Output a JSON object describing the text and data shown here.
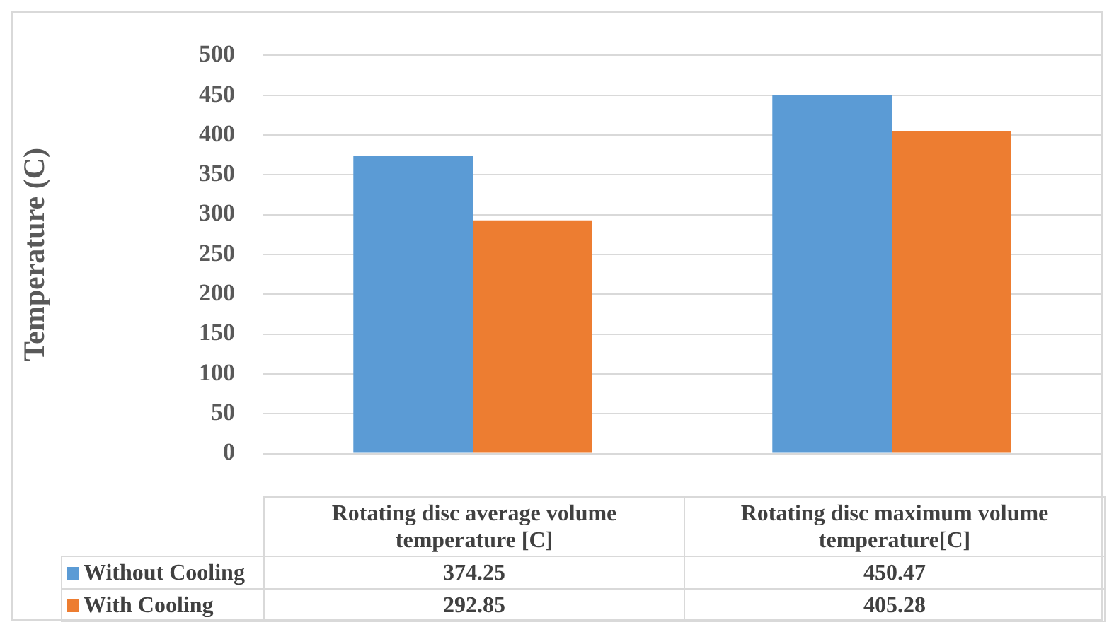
{
  "chart_data": {
    "type": "bar",
    "ylabel": "Temperature (C)",
    "categories": [
      "Rotating disc average volume temperature [C]",
      "Rotating disc maximum volume temperature[C]"
    ],
    "series": [
      {
        "name": "Without Cooling",
        "color": "#5b9bd5",
        "values": [
          374.25,
          450.47
        ]
      },
      {
        "name": "With Cooling",
        "color": "#ed7d31",
        "values": [
          292.85,
          405.28
        ]
      }
    ],
    "ylim": [
      0,
      500
    ],
    "yticks": [
      0,
      50,
      100,
      150,
      200,
      250,
      300,
      350,
      400,
      450,
      500
    ],
    "grid": "y",
    "legend": "bottom",
    "data_labels": true
  }
}
